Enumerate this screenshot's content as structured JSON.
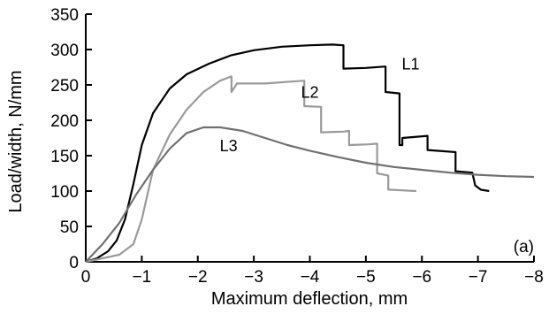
{
  "chart_data": {
    "type": "line",
    "xlabel": "Maximum deflection, mm",
    "ylabel": "Load/width, N/mm",
    "panel_label": "(a)",
    "xlim": [
      0,
      -8
    ],
    "ylim": [
      0,
      350
    ],
    "x_ticks": [
      0,
      -1,
      -2,
      -3,
      -4,
      -5,
      -6,
      -7,
      -8
    ],
    "x_tick_labels": [
      "0",
      "−1",
      "−2",
      "−3",
      "−4",
      "−5",
      "−6",
      "−7",
      "−8"
    ],
    "y_ticks": [
      0,
      50,
      100,
      150,
      200,
      250,
      300,
      350
    ],
    "y_tick_labels": [
      "0",
      "50",
      "100",
      "150",
      "200",
      "250",
      "300",
      "350"
    ],
    "grid": false,
    "legend": "none",
    "series": [
      {
        "name": "L1",
        "color": "#000000",
        "points": [
          [
            0,
            0
          ],
          [
            -0.2,
            5
          ],
          [
            -0.4,
            15
          ],
          [
            -0.55,
            30
          ],
          [
            -0.7,
            60
          ],
          [
            -0.85,
            110
          ],
          [
            -1.0,
            165
          ],
          [
            -1.2,
            210
          ],
          [
            -1.5,
            245
          ],
          [
            -1.8,
            265
          ],
          [
            -2.2,
            280
          ],
          [
            -2.6,
            292
          ],
          [
            -3.0,
            299
          ],
          [
            -3.5,
            304
          ],
          [
            -4.0,
            306
          ],
          [
            -4.4,
            307
          ],
          [
            -4.6,
            306
          ],
          [
            -4.6,
            273
          ],
          [
            -5.0,
            274
          ],
          [
            -5.35,
            276
          ],
          [
            -5.35,
            240
          ],
          [
            -5.6,
            238
          ],
          [
            -5.6,
            165
          ],
          [
            -5.65,
            165
          ],
          [
            -5.65,
            175
          ],
          [
            -6.1,
            178
          ],
          [
            -6.1,
            158
          ],
          [
            -6.6,
            155
          ],
          [
            -6.6,
            128
          ],
          [
            -6.9,
            126
          ],
          [
            -6.95,
            108
          ],
          [
            -7.05,
            102
          ],
          [
            -7.2,
            100
          ]
        ]
      },
      {
        "name": "L2",
        "color": "#9a9a9a",
        "points": [
          [
            0,
            0
          ],
          [
            -0.3,
            5
          ],
          [
            -0.6,
            10
          ],
          [
            -0.85,
            25
          ],
          [
            -1.0,
            60
          ],
          [
            -1.2,
            130
          ],
          [
            -1.5,
            180
          ],
          [
            -1.8,
            215
          ],
          [
            -2.1,
            240
          ],
          [
            -2.4,
            256
          ],
          [
            -2.6,
            262
          ],
          [
            -2.6,
            240
          ],
          [
            -2.7,
            252
          ],
          [
            -3.2,
            252
          ],
          [
            -3.9,
            256
          ],
          [
            -3.9,
            220
          ],
          [
            -4.2,
            219
          ],
          [
            -4.2,
            183
          ],
          [
            -4.6,
            184
          ],
          [
            -4.7,
            185
          ],
          [
            -4.7,
            165
          ],
          [
            -5.05,
            166
          ],
          [
            -5.2,
            167
          ],
          [
            -5.2,
            125
          ],
          [
            -5.4,
            122
          ],
          [
            -5.4,
            102
          ],
          [
            -5.9,
            100
          ]
        ]
      },
      {
        "name": "L3",
        "color": "#707070",
        "points": [
          [
            0,
            0
          ],
          [
            -0.3,
            25
          ],
          [
            -0.6,
            55
          ],
          [
            -0.9,
            95
          ],
          [
            -1.2,
            130
          ],
          [
            -1.5,
            160
          ],
          [
            -1.8,
            182
          ],
          [
            -2.1,
            190
          ],
          [
            -2.4,
            190
          ],
          [
            -2.8,
            185
          ],
          [
            -3.2,
            175
          ],
          [
            -3.6,
            165
          ],
          [
            -4.0,
            157
          ],
          [
            -4.5,
            148
          ],
          [
            -5.0,
            140
          ],
          [
            -5.5,
            134
          ],
          [
            -6.0,
            130
          ],
          [
            -6.5,
            126
          ],
          [
            -7.0,
            123
          ],
          [
            -7.5,
            121
          ],
          [
            -8.0,
            120
          ]
        ]
      }
    ],
    "annotations": [
      {
        "text": "L1",
        "x": -5.8,
        "y": 272
      },
      {
        "text": "L2",
        "x": -4.0,
        "y": 232
      },
      {
        "text": "L3",
        "x": -2.55,
        "y": 156
      }
    ]
  }
}
